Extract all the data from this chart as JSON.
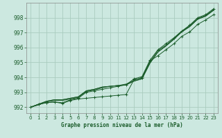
{
  "title": "Graphe pression niveau de la mer (hPa)",
  "bg_color": "#cce8e0",
  "grid_color": "#aaccbf",
  "line_color": "#1a5c2a",
  "ylim": [
    991.6,
    999.0
  ],
  "xlim": [
    -0.5,
    23.5
  ],
  "yticks": [
    992,
    993,
    994,
    995,
    996,
    997,
    998
  ],
  "xticks": [
    0,
    1,
    2,
    3,
    4,
    5,
    6,
    7,
    8,
    9,
    10,
    11,
    12,
    13,
    14,
    15,
    16,
    17,
    18,
    19,
    20,
    21,
    22,
    23
  ],
  "series_smooth": [
    [
      992.0,
      992.15,
      992.35,
      992.45,
      992.45,
      992.55,
      992.65,
      993.05,
      993.15,
      993.3,
      993.4,
      993.45,
      993.55,
      993.8,
      994.0,
      995.05,
      995.8,
      996.15,
      996.6,
      997.1,
      997.45,
      997.95,
      998.15,
      998.55
    ],
    [
      992.0,
      992.2,
      992.4,
      992.5,
      992.5,
      992.6,
      992.7,
      993.1,
      993.2,
      993.35,
      993.4,
      993.45,
      993.5,
      993.75,
      993.9,
      994.95,
      995.7,
      996.1,
      996.55,
      997.05,
      997.4,
      997.9,
      998.1,
      998.5
    ],
    [
      992.0,
      992.2,
      992.4,
      992.5,
      992.5,
      992.6,
      992.7,
      993.1,
      993.2,
      993.35,
      993.4,
      993.45,
      993.5,
      993.75,
      993.9,
      994.95,
      995.7,
      996.1,
      996.55,
      997.05,
      997.4,
      997.9,
      998.1,
      998.5
    ]
  ],
  "series_markers": [
    [
      992.0,
      992.2,
      992.3,
      992.35,
      992.25,
      992.45,
      992.55,
      992.6,
      992.65,
      992.7,
      992.75,
      992.8,
      992.85,
      993.85,
      993.95,
      995.1,
      995.45,
      995.85,
      996.25,
      996.75,
      997.05,
      997.55,
      997.85,
      998.2
    ],
    [
      992.0,
      992.2,
      992.3,
      992.35,
      992.3,
      992.5,
      992.6,
      993.0,
      993.1,
      993.2,
      993.3,
      993.4,
      993.5,
      993.9,
      994.05,
      995.15,
      995.85,
      996.25,
      996.65,
      997.1,
      997.5,
      998.0,
      998.2,
      998.6
    ]
  ]
}
